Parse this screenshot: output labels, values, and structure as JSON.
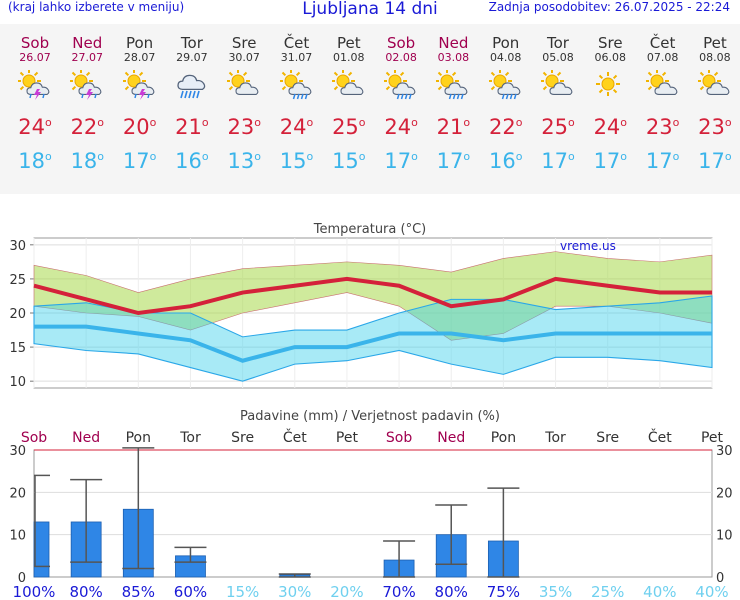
{
  "header": {
    "left_note": "(kraj lahko izberete v meniju)",
    "title": "Ljubljana 14 dni",
    "updated": "Zadnja posodobitev: 26.07.2025 - 22:24"
  },
  "colors": {
    "weekend": "#a0004f",
    "max_temp": "#d4213a",
    "min_temp": "#3ab4ea",
    "bars": "#2f86e6",
    "green_band": "#c9e88c",
    "cyan_band": "#8ee3f2"
  },
  "days": [
    {
      "name": "Sob",
      "date": "26.07",
      "weekend": true,
      "icon": "sun-cloud-thunder-icon",
      "tmax": "24",
      "tmin": "18"
    },
    {
      "name": "Ned",
      "date": "27.07",
      "weekend": true,
      "icon": "sun-cloud-thunder-icon",
      "tmax": "22",
      "tmin": "18"
    },
    {
      "name": "Pon",
      "date": "28.07",
      "weekend": false,
      "icon": "sun-cloud-thunder-icon",
      "tmax": "20",
      "tmin": "17"
    },
    {
      "name": "Tor",
      "date": "29.07",
      "weekend": false,
      "icon": "cloud-rain-icon",
      "tmax": "21",
      "tmin": "16"
    },
    {
      "name": "Sre",
      "date": "30.07",
      "weekend": false,
      "icon": "sun-cloud-icon",
      "tmax": "23",
      "tmin": "13"
    },
    {
      "name": "Čet",
      "date": "31.07",
      "weekend": false,
      "icon": "sun-cloud-rain-icon",
      "tmax": "24",
      "tmin": "15"
    },
    {
      "name": "Pet",
      "date": "01.08",
      "weekend": false,
      "icon": "sun-cloud-icon",
      "tmax": "25",
      "tmin": "15"
    },
    {
      "name": "Sob",
      "date": "02.08",
      "weekend": true,
      "icon": "sun-cloud-rain-icon",
      "tmax": "24",
      "tmin": "17"
    },
    {
      "name": "Ned",
      "date": "03.08",
      "weekend": true,
      "icon": "sun-cloud-rain-icon",
      "tmax": "21",
      "tmin": "17"
    },
    {
      "name": "Pon",
      "date": "04.08",
      "weekend": false,
      "icon": "sun-cloud-rain-icon",
      "tmax": "22",
      "tmin": "16"
    },
    {
      "name": "Tor",
      "date": "05.08",
      "weekend": false,
      "icon": "sun-cloud-icon",
      "tmax": "25",
      "tmin": "17"
    },
    {
      "name": "Sre",
      "date": "06.08",
      "weekend": false,
      "icon": "sun-icon",
      "tmax": "24",
      "tmin": "17"
    },
    {
      "name": "Čet",
      "date": "07.08",
      "weekend": false,
      "icon": "sun-cloud-icon",
      "tmax": "23",
      "tmin": "17"
    },
    {
      "name": "Pet",
      "date": "08.08",
      "weekend": false,
      "icon": "sun-cloud-icon",
      "tmax": "23",
      "tmin": "17"
    }
  ],
  "chart_data": [
    {
      "type": "line",
      "title": "Temperatura (°C)",
      "watermark": "vreme.us",
      "ylim": [
        9,
        31
      ],
      "yticks": [
        10,
        15,
        20,
        25,
        30
      ],
      "grid": true,
      "series": [
        {
          "values": [
            24,
            22,
            20,
            21,
            23,
            24,
            25,
            24,
            21,
            22,
            25,
            24,
            23,
            23
          ]
        },
        {
          "values": [
            18,
            18,
            17,
            16,
            13,
            15,
            15,
            17,
            17,
            16,
            17,
            17,
            17,
            17
          ]
        }
      ],
      "max_band_upper": [
        27,
        25.5,
        23,
        25,
        26.5,
        27,
        27.5,
        27,
        26,
        28,
        29,
        28,
        27.5,
        28.5
      ],
      "max_band_lower": [
        21,
        20,
        19.5,
        17.5,
        20,
        21.5,
        23,
        21,
        16,
        17,
        21,
        21,
        20,
        18.5
      ],
      "min_band_upper": [
        21,
        21.5,
        20,
        20,
        16.5,
        17.5,
        17.5,
        20,
        22,
        22,
        20.5,
        21,
        21.5,
        22.5
      ],
      "min_band_lower": [
        15.5,
        14.5,
        14,
        12,
        10,
        12.5,
        13,
        14.5,
        12.5,
        11,
        13.5,
        13.5,
        13,
        12
      ]
    },
    {
      "type": "bar",
      "title": "Padavine (mm) / Verjetnost padavin (%)",
      "ylim": [
        0,
        30
      ],
      "yticks": [
        0,
        10,
        20,
        30
      ],
      "series": [
        {
          "values": [
            13,
            13,
            16,
            5,
            0,
            0.5,
            0,
            4,
            10,
            8.5,
            0,
            0,
            0,
            0
          ]
        }
      ],
      "error_high": [
        24,
        23,
        30.5,
        7,
        0,
        0.7,
        0,
        8.5,
        17,
        21,
        0,
        0,
        0,
        0
      ],
      "error_low": [
        2.5,
        3.5,
        2,
        3.5,
        0,
        0,
        0,
        0,
        3,
        0,
        0,
        0,
        0,
        0
      ],
      "probability": [
        "100%",
        "80%",
        "85%",
        "60%",
        "15%",
        "30%",
        "20%",
        "70%",
        "80%",
        "75%",
        "35%",
        "25%",
        "40%",
        "40%"
      ]
    }
  ]
}
